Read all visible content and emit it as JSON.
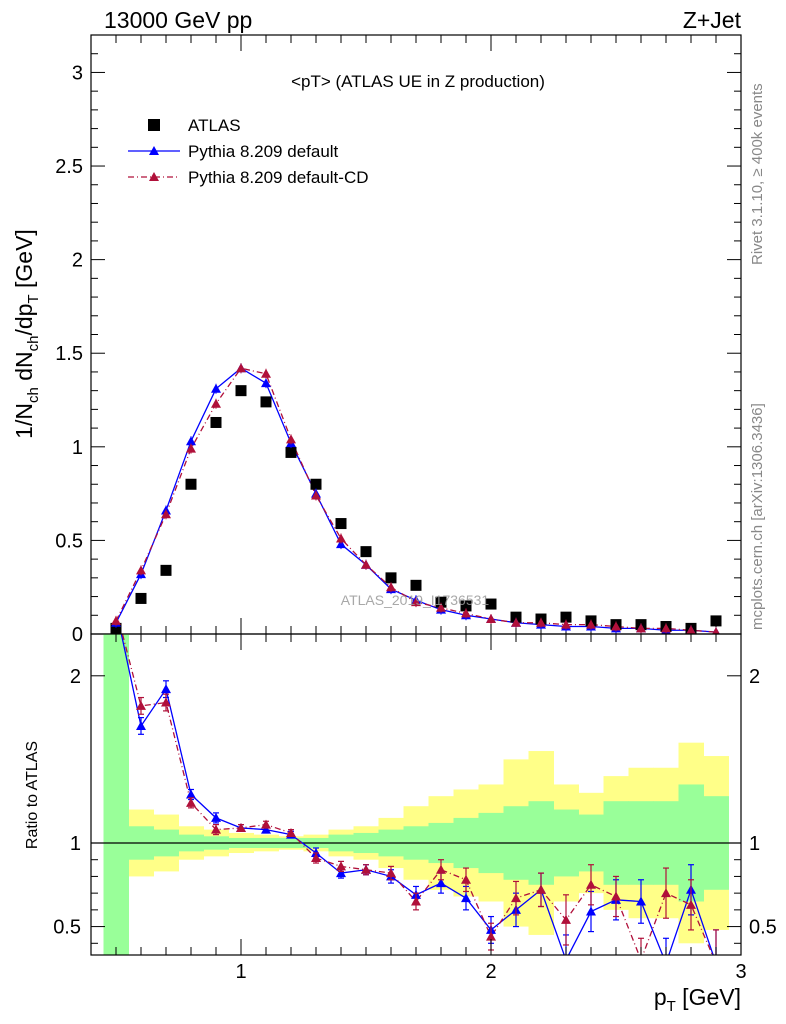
{
  "header": {
    "left": "13000 GeV pp",
    "right": "Z+Jet"
  },
  "side": {
    "rivet": "Rivet 3.1.10, ≥ 400k events",
    "mcplots": "mcplots.cern.ch [arXiv:1306.3436]"
  },
  "watermark": "ATLAS_2019_I1736531",
  "chart_data": [
    {
      "type": "scatter",
      "title": "<pT> (ATLAS UE in Z production)",
      "ylabel": "1/N_ch dN_ch/dp_T [GeV]",
      "xlim": [
        0.4,
        3.0
      ],
      "ylim": [
        0,
        3.2
      ],
      "y_ticks": [
        0,
        0.5,
        1,
        1.5,
        2,
        2.5,
        3
      ],
      "legend_position": "top-left",
      "x": [
        0.5,
        0.6,
        0.7,
        0.8,
        0.9,
        1.0,
        1.1,
        1.2,
        1.3,
        1.4,
        1.5,
        1.6,
        1.7,
        1.8,
        1.9,
        2.0,
        2.1,
        2.2,
        2.3,
        2.4,
        2.5,
        2.6,
        2.7,
        2.8,
        2.9
      ],
      "series": [
        {
          "name": "ATLAS",
          "color": "#000000",
          "marker": "square",
          "values": [
            0.03,
            0.19,
            0.34,
            0.8,
            1.13,
            1.3,
            1.24,
            0.97,
            0.8,
            0.59,
            0.44,
            0.3,
            0.26,
            0.17,
            0.15,
            0.16,
            0.09,
            0.08,
            0.09,
            0.07,
            0.05,
            0.05,
            0.04,
            0.03,
            0.07
          ]
        },
        {
          "name": "Pythia 8.209 default",
          "color": "#0000ff",
          "marker": "triangle",
          "line": "solid",
          "values": [
            0.06,
            0.32,
            0.66,
            1.03,
            1.31,
            1.42,
            1.34,
            1.02,
            0.75,
            0.48,
            0.37,
            0.24,
            0.18,
            0.13,
            0.1,
            0.08,
            0.06,
            0.05,
            0.04,
            0.04,
            0.03,
            0.03,
            0.02,
            0.02,
            0.01
          ]
        },
        {
          "name": "Pythia 8.209 default-CD",
          "color": "#b0103a",
          "marker": "triangle",
          "line": "dashdot",
          "values": [
            0.07,
            0.34,
            0.64,
            0.99,
            1.23,
            1.42,
            1.39,
            1.04,
            0.74,
            0.51,
            0.37,
            0.25,
            0.17,
            0.14,
            0.11,
            0.08,
            0.06,
            0.06,
            0.05,
            0.05,
            0.04,
            0.03,
            0.03,
            0.02,
            0.01
          ]
        }
      ]
    },
    {
      "type": "line",
      "ylabel": "Ratio to ATLAS",
      "xlabel": "p_T [GeV]",
      "xlim": [
        0.4,
        3.0
      ],
      "ylim": [
        0.33,
        2.25
      ],
      "x_ticks": [
        1,
        2,
        3
      ],
      "y_ticks": [
        0.5,
        1,
        2
      ],
      "x": [
        0.5,
        0.6,
        0.7,
        0.8,
        0.9,
        1.0,
        1.1,
        1.2,
        1.3,
        1.4,
        1.5,
        1.6,
        1.7,
        1.8,
        1.9,
        2.0,
        2.1,
        2.2,
        2.3,
        2.4,
        2.5,
        2.6,
        2.7,
        2.8,
        2.9
      ],
      "bands": {
        "yellow_color": "#ffff88",
        "green_color": "#99ff99",
        "yellow_low": [
          0.3,
          0.8,
          0.83,
          0.9,
          0.92,
          0.94,
          0.95,
          0.96,
          0.95,
          0.92,
          0.9,
          0.85,
          0.78,
          0.72,
          0.68,
          0.65,
          0.5,
          0.45,
          0.65,
          0.7,
          0.6,
          0.55,
          0.55,
          0.4,
          0.48
        ],
        "yellow_high": [
          2.4,
          1.2,
          1.17,
          1.1,
          1.08,
          1.06,
          1.05,
          1.04,
          1.05,
          1.08,
          1.1,
          1.15,
          1.22,
          1.28,
          1.32,
          1.35,
          1.5,
          1.55,
          1.35,
          1.3,
          1.4,
          1.45,
          1.45,
          1.6,
          1.52
        ],
        "green_low": [
          0.3,
          0.9,
          0.92,
          0.95,
          0.96,
          0.97,
          0.97,
          0.97,
          0.97,
          0.95,
          0.94,
          0.92,
          0.9,
          0.88,
          0.85,
          0.82,
          0.78,
          0.75,
          0.8,
          0.83,
          0.75,
          0.75,
          0.75,
          0.65,
          0.72
        ],
        "green_high": [
          2.4,
          1.1,
          1.08,
          1.05,
          1.04,
          1.03,
          1.03,
          1.03,
          1.03,
          1.05,
          1.06,
          1.08,
          1.1,
          1.12,
          1.15,
          1.18,
          1.22,
          1.25,
          1.2,
          1.17,
          1.25,
          1.25,
          1.25,
          1.35,
          1.28
        ]
      },
      "series": [
        {
          "name": "Pythia 8.209 default",
          "color": "#0000ff",
          "line": "solid",
          "values": [
            2.4,
            1.7,
            1.92,
            1.29,
            1.15,
            1.09,
            1.08,
            1.05,
            0.94,
            0.82,
            0.84,
            0.8,
            0.69,
            0.76,
            0.67,
            0.48,
            0.6,
            0.72,
            0.3,
            0.59,
            0.66,
            0.65,
            0.28,
            0.72,
            0.28
          ],
          "errors": [
            0.0,
            0.05,
            0.05,
            0.03,
            0.03,
            0.02,
            0.02,
            0.02,
            0.03,
            0.03,
            0.03,
            0.04,
            0.05,
            0.06,
            0.07,
            0.08,
            0.1,
            0.1,
            0.15,
            0.12,
            0.12,
            0.13,
            0.15,
            0.15,
            0.2
          ]
        },
        {
          "name": "Pythia 8.209 default-CD",
          "color": "#b0103a",
          "line": "dashdot",
          "values": [
            2.4,
            1.82,
            1.84,
            1.24,
            1.08,
            1.09,
            1.11,
            1.06,
            0.91,
            0.86,
            0.84,
            0.82,
            0.65,
            0.84,
            0.78,
            0.44,
            0.67,
            0.72,
            0.54,
            0.75,
            0.68,
            0.3,
            0.7,
            0.63,
            0.28
          ],
          "errors": [
            0.0,
            0.05,
            0.05,
            0.03,
            0.03,
            0.02,
            0.02,
            0.02,
            0.03,
            0.03,
            0.03,
            0.04,
            0.05,
            0.06,
            0.07,
            0.08,
            0.1,
            0.1,
            0.15,
            0.12,
            0.12,
            0.13,
            0.15,
            0.15,
            0.2
          ]
        }
      ]
    }
  ]
}
